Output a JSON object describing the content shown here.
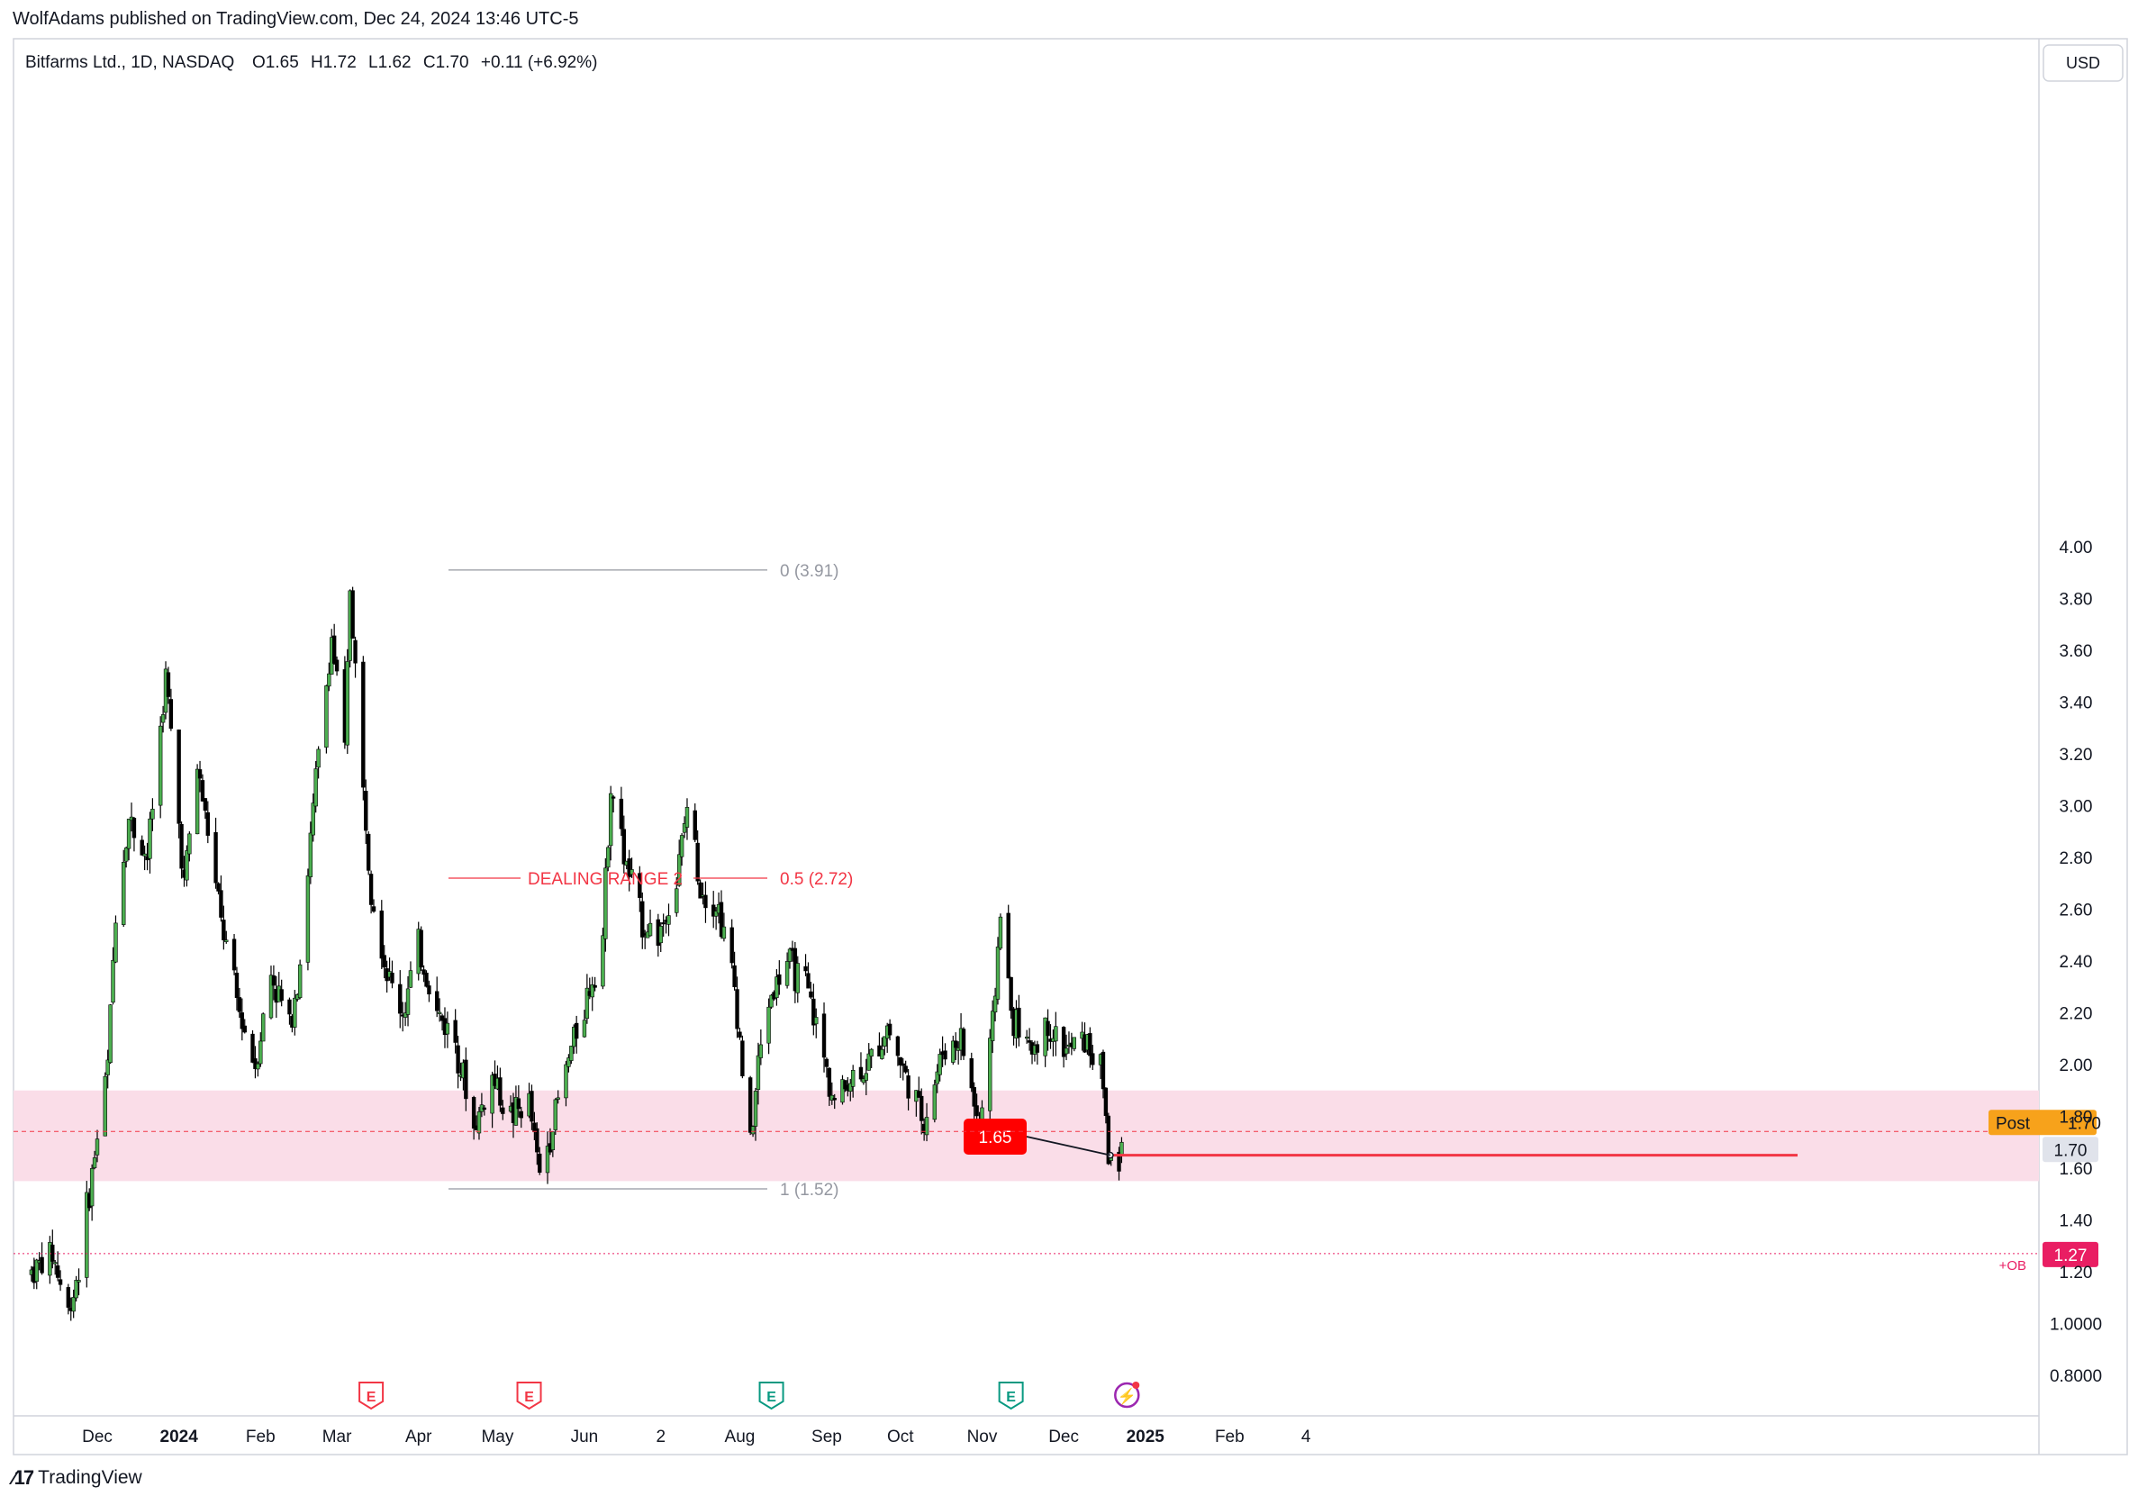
{
  "header": {
    "publisher_line": "WolfAdams published on TradingView.com, Dec 24, 2024 13:46 UTC-5"
  },
  "symbol_bar": {
    "name": "Bitfarms Ltd., 1D, NASDAQ",
    "open_label": "O",
    "open": "1.65",
    "high_label": "H",
    "high": "1.72",
    "low_label": "L",
    "low": "1.62",
    "close_label": "C",
    "close": "1.70",
    "change": "+0.11 (+6.92%)"
  },
  "currency_button": "USD",
  "footer": {
    "brand": "TradingView"
  },
  "colors": {
    "up": "#4caf50",
    "down": "#000000",
    "zone": "#fadde8",
    "red": "#f23645",
    "post_badge": "#f7a21b",
    "ob_badge": "#e91e63"
  },
  "chart_data": {
    "type": "candlestick",
    "title": "Bitfarms Ltd., 1D, NASDAQ",
    "ylim": [
      0.75,
      4.25
    ],
    "y_ticks": [
      "0.8000",
      "1.0000",
      "1.20",
      "1.40",
      "1.60",
      "1.80",
      "2.00",
      "2.20",
      "2.40",
      "2.60",
      "2.80",
      "3.00",
      "3.20",
      "3.40",
      "3.60",
      "3.80",
      "4.00"
    ],
    "x_ticks": [
      {
        "label": "Dec",
        "date": "2023-12-01",
        "bold": false
      },
      {
        "label": "2024",
        "date": "2024-01-01",
        "bold": true
      },
      {
        "label": "Feb",
        "date": "2024-02-01",
        "bold": false
      },
      {
        "label": "Mar",
        "date": "2024-03-01",
        "bold": false
      },
      {
        "label": "Apr",
        "date": "2024-04-01",
        "bold": false
      },
      {
        "label": "May",
        "date": "2024-05-01",
        "bold": false
      },
      {
        "label": "Jun",
        "date": "2024-06-03",
        "bold": false
      },
      {
        "label": "2",
        "date": "2024-07-02",
        "bold": false
      },
      {
        "label": "Aug",
        "date": "2024-08-01",
        "bold": false
      },
      {
        "label": "Sep",
        "date": "2024-09-03",
        "bold": false
      },
      {
        "label": "Oct",
        "date": "2024-10-01",
        "bold": false
      },
      {
        "label": "Nov",
        "date": "2024-11-01",
        "bold": false
      },
      {
        "label": "Dec",
        "date": "2024-12-02",
        "bold": false
      },
      {
        "label": "2025",
        "date": "2025-01-02",
        "bold": true
      },
      {
        "label": "Feb",
        "date": "2025-02-03",
        "bold": false
      },
      {
        "label": "4",
        "date": "2025-03-04",
        "bold": false
      }
    ],
    "price_path": [
      [
        "2023-11-06",
        1.2
      ],
      [
        "2023-11-14",
        1.27
      ],
      [
        "2023-11-20",
        1.04
      ],
      [
        "2023-11-24",
        1.22
      ],
      [
        "2023-11-30",
        1.65
      ],
      [
        "2023-12-05",
        2.0
      ],
      [
        "2023-12-08",
        2.6
      ],
      [
        "2023-12-13",
        2.95
      ],
      [
        "2023-12-20",
        2.8
      ],
      [
        "2023-12-27",
        3.5
      ],
      [
        "2024-01-03",
        2.7
      ],
      [
        "2024-01-08",
        3.15
      ],
      [
        "2024-01-12",
        2.9
      ],
      [
        "2024-01-17",
        2.55
      ],
      [
        "2024-01-24",
        2.2
      ],
      [
        "2024-01-30",
        2.0
      ],
      [
        "2024-02-05",
        2.35
      ],
      [
        "2024-02-12",
        2.15
      ],
      [
        "2024-02-16",
        2.4
      ],
      [
        "2024-02-22",
        3.1
      ],
      [
        "2024-02-28",
        3.65
      ],
      [
        "2024-03-04",
        3.2
      ],
      [
        "2024-03-06",
        3.85
      ],
      [
        "2024-03-11",
        3.05
      ],
      [
        "2024-03-14",
        2.7
      ],
      [
        "2024-03-20",
        2.35
      ],
      [
        "2024-03-26",
        2.2
      ],
      [
        "2024-04-01",
        2.45
      ],
      [
        "2024-04-08",
        2.2
      ],
      [
        "2024-04-15",
        2.1
      ],
      [
        "2024-04-22",
        1.75
      ],
      [
        "2024-04-29",
        1.95
      ],
      [
        "2024-05-06",
        1.8
      ],
      [
        "2024-05-13",
        1.85
      ],
      [
        "2024-05-17",
        1.57
      ],
      [
        "2024-05-22",
        1.78
      ],
      [
        "2024-05-30",
        2.1
      ],
      [
        "2024-06-05",
        2.3
      ],
      [
        "2024-06-10",
        2.5
      ],
      [
        "2024-06-13",
        3.1
      ],
      [
        "2024-06-18",
        2.8
      ],
      [
        "2024-06-25",
        2.55
      ],
      [
        "2024-07-01",
        2.5
      ],
      [
        "2024-07-08",
        2.7
      ],
      [
        "2024-07-12",
        3.0
      ],
      [
        "2024-07-17",
        2.7
      ],
      [
        "2024-07-24",
        2.6
      ],
      [
        "2024-07-30",
        2.3
      ],
      [
        "2024-08-05",
        1.68
      ],
      [
        "2024-08-08",
        2.0
      ],
      [
        "2024-08-12",
        2.25
      ],
      [
        "2024-08-19",
        2.4
      ],
      [
        "2024-08-26",
        2.3
      ],
      [
        "2024-08-30",
        2.15
      ],
      [
        "2024-09-06",
        1.85
      ],
      [
        "2024-09-12",
        1.95
      ],
      [
        "2024-09-19",
        2.0
      ],
      [
        "2024-09-26",
        2.15
      ],
      [
        "2024-10-03",
        1.95
      ],
      [
        "2024-10-10",
        1.78
      ],
      [
        "2024-10-17",
        2.05
      ],
      [
        "2024-10-24",
        2.1
      ],
      [
        "2024-10-31",
        1.75
      ],
      [
        "2024-11-05",
        2.15
      ],
      [
        "2024-11-08",
        2.6
      ],
      [
        "2024-11-12",
        2.2
      ],
      [
        "2024-11-19",
        2.05
      ],
      [
        "2024-11-26",
        2.15
      ],
      [
        "2024-12-03",
        2.05
      ],
      [
        "2024-12-10",
        2.1
      ],
      [
        "2024-12-17",
        1.95
      ],
      [
        "2024-12-19",
        1.65
      ],
      [
        "2024-12-23",
        1.59
      ],
      [
        "2024-12-24",
        1.7
      ]
    ],
    "support_zone": {
      "from": 1.55,
      "to": 1.9
    },
    "dealing_range": {
      "label": "DEALING RANGE  2",
      "high": 3.91,
      "mid": 2.72,
      "low": 1.52,
      "high_label": "0 (3.91)",
      "mid_label": "0.5 (2.72)",
      "low_label": "1 (1.52)"
    },
    "horizontal_line": {
      "price": 1.65,
      "label": "1.65"
    },
    "current_price": {
      "value": 1.7,
      "label": "1.70",
      "post_label": "Post",
      "post_value": "1.70"
    },
    "ob_level": {
      "price": 1.27,
      "value_label": "1.27",
      "tag": "+OB"
    },
    "events": [
      {
        "date": "2024-03-14",
        "type": "earnings",
        "label": "E",
        "color": "#f23645"
      },
      {
        "date": "2024-05-13",
        "type": "earnings",
        "label": "E",
        "color": "#f23645"
      },
      {
        "date": "2024-08-13",
        "type": "earnings",
        "label": "E",
        "color": "#089981"
      },
      {
        "date": "2024-11-12",
        "type": "earnings",
        "label": "E",
        "color": "#089981"
      },
      {
        "date": "2024-12-26",
        "type": "flash",
        "label": "⚡",
        "color": "#9c27b0"
      }
    ]
  }
}
